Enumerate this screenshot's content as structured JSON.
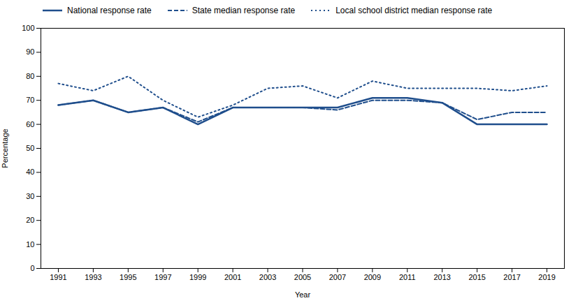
{
  "chart_data": {
    "type": "line",
    "x": [
      1991,
      1993,
      1995,
      1997,
      1999,
      2001,
      2003,
      2005,
      2007,
      2009,
      2011,
      2013,
      2015,
      2017,
      2019
    ],
    "series": [
      {
        "name": "National response rate",
        "color": "#1f4e8c",
        "line_style": "solid",
        "values": [
          68,
          70,
          65,
          67,
          60,
          67,
          67,
          67,
          67,
          71,
          71,
          69,
          60,
          60,
          60
        ]
      },
      {
        "name": "State median response rate",
        "color": "#1f4e8c",
        "line_style": "dashed",
        "values": [
          68,
          70,
          65,
          67,
          61,
          67,
          67,
          67,
          66,
          70,
          70,
          69,
          62,
          65,
          65
        ]
      },
      {
        "name": "Local school district median response rate",
        "color": "#1f4e8c",
        "line_style": "dotted",
        "values": [
          77,
          74,
          80,
          70,
          63,
          68,
          75,
          76,
          71,
          78,
          75,
          75,
          75,
          74,
          76
        ]
      }
    ],
    "xlabel": "Year",
    "ylabel": "Percentage",
    "xlim": [
      1990,
      2020
    ],
    "xticks": [
      1991,
      1993,
      1995,
      1997,
      1999,
      2001,
      2003,
      2005,
      2007,
      2009,
      2011,
      2013,
      2015,
      2017,
      2019
    ],
    "ylim": [
      0,
      100
    ],
    "yticks": [
      0,
      10,
      20,
      30,
      40,
      50,
      60,
      70,
      80,
      90,
      100
    ],
    "grid": false
  }
}
